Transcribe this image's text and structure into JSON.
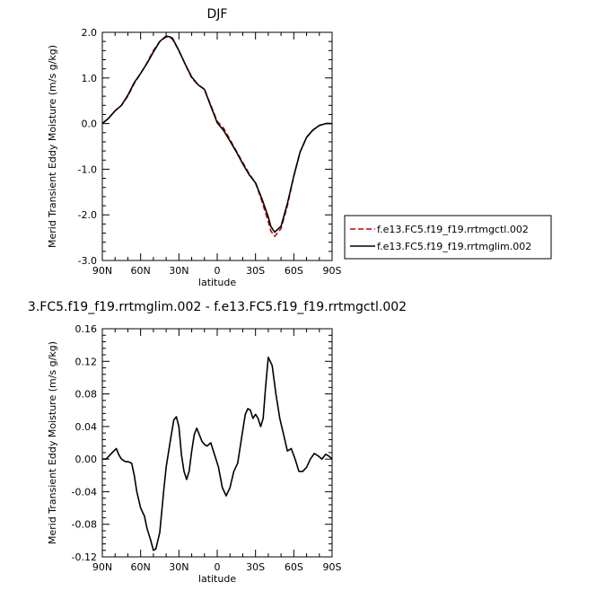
{
  "chart_data": [
    {
      "type": "line",
      "title": "DJF",
      "xlabel": "latitude",
      "ylabel": "Merid Transient Eddy Moisture (m/s g/kg)",
      "xlim": [
        90,
        -90
      ],
      "ylim": [
        -3.0,
        2.0
      ],
      "xticks": [
        90,
        60,
        30,
        0,
        -30,
        -60,
        -90
      ],
      "xtick_labels": [
        "90N",
        "60N",
        "30N",
        "0",
        "30S",
        "60S",
        "90S"
      ],
      "yticks": [
        2.0,
        1.0,
        0.0,
        -1.0,
        -2.0,
        -3.0
      ],
      "ytick_labels": [
        "2.0",
        "1.0",
        "0.0",
        "-1.0",
        "-2.0",
        "-3.0"
      ],
      "grid": false,
      "legend_position": "outside-right",
      "series": [
        {
          "name": "f.e13.FC5.f19_f19.rrtmgctl.002",
          "color": "#cc0000",
          "dash": "dashed",
          "x": [
            90,
            85,
            80,
            75,
            70,
            65,
            60,
            55,
            50,
            45,
            40,
            37,
            35,
            30,
            25,
            20,
            15,
            10,
            5,
            0,
            -5,
            -10,
            -15,
            -20,
            -25,
            -30,
            -35,
            -40,
            -42,
            -45,
            -50,
            -55,
            -60,
            -65,
            -70,
            -75,
            -80,
            -85,
            -90
          ],
          "y": [
            0.0,
            0.12,
            0.28,
            0.4,
            0.6,
            0.88,
            1.1,
            1.33,
            1.6,
            1.8,
            1.9,
            1.88,
            1.85,
            1.6,
            1.3,
            1.0,
            0.85,
            0.75,
            0.4,
            0.05,
            -0.1,
            -0.35,
            -0.6,
            -0.85,
            -1.1,
            -1.3,
            -1.7,
            -2.15,
            -2.35,
            -2.47,
            -2.3,
            -1.8,
            -1.15,
            -0.62,
            -0.3,
            -0.14,
            -0.04,
            0.0,
            0.0
          ]
        },
        {
          "name": "f.e13.FC5.f19_f19.rrtmglim.002",
          "color": "#000000",
          "dash": "solid",
          "x": [
            90,
            85,
            80,
            75,
            70,
            65,
            60,
            55,
            50,
            45,
            40,
            37,
            35,
            30,
            25,
            20,
            15,
            10,
            5,
            0,
            -5,
            -10,
            -15,
            -20,
            -25,
            -30,
            -35,
            -40,
            -42,
            -45,
            -50,
            -55,
            -60,
            -65,
            -70,
            -75,
            -80,
            -85,
            -90
          ],
          "y": [
            0.0,
            0.12,
            0.28,
            0.4,
            0.62,
            0.9,
            1.1,
            1.32,
            1.57,
            1.8,
            1.92,
            1.9,
            1.87,
            1.6,
            1.3,
            1.02,
            0.85,
            0.75,
            0.38,
            0.02,
            -0.15,
            -0.38,
            -0.62,
            -0.88,
            -1.12,
            -1.3,
            -1.65,
            -2.05,
            -2.25,
            -2.38,
            -2.25,
            -1.75,
            -1.15,
            -0.62,
            -0.3,
            -0.14,
            -0.04,
            0.0,
            0.0
          ]
        }
      ]
    },
    {
      "type": "line",
      "title": "3.FC5.f19_f19.rrtmglim.002 - f.e13.FC5.f19_f19.rrtmgctl.002",
      "xlabel": "latitude",
      "ylabel": "Merid Transient Eddy Moisture (m/s g/kg)",
      "xlim": [
        90,
        -90
      ],
      "ylim": [
        -0.12,
        0.16
      ],
      "xticks": [
        90,
        60,
        30,
        0,
        -30,
        -60,
        -90
      ],
      "xtick_labels": [
        "90N",
        "60N",
        "30N",
        "0",
        "30S",
        "60S",
        "90S"
      ],
      "yticks": [
        0.16,
        0.12,
        0.08,
        0.04,
        0.0,
        -0.04,
        -0.08,
        -0.12
      ],
      "ytick_labels": [
        "0.16",
        "0.12",
        "0.08",
        "0.04",
        "0.00",
        "-0.04",
        "-0.08",
        "-0.12"
      ],
      "grid": false,
      "series": [
        {
          "color": "#000000",
          "dash": "solid",
          "x": [
            90,
            87,
            84,
            81,
            79,
            77,
            75,
            72,
            70,
            67,
            65,
            63,
            60,
            57,
            55,
            52,
            50,
            48,
            45,
            42,
            40,
            37,
            34,
            32,
            30,
            28,
            26,
            24,
            22,
            20,
            18,
            16,
            14,
            12,
            10,
            8,
            5,
            3,
            1,
            -1,
            -4,
            -7,
            -10,
            -13,
            -16,
            -18,
            -20,
            -22,
            -24,
            -26,
            -28,
            -30,
            -32,
            -34,
            -36,
            -38,
            -40,
            -43,
            -46,
            -49,
            -52,
            -55,
            -58,
            -61,
            -64,
            -67,
            -70,
            -73,
            -76,
            -79,
            -82,
            -85,
            -88,
            -90
          ],
          "y": [
            0.0,
            0.0,
            0.005,
            0.01,
            0.013,
            0.005,
            0.0,
            -0.003,
            -0.003,
            -0.005,
            -0.02,
            -0.04,
            -0.06,
            -0.07,
            -0.085,
            -0.1,
            -0.112,
            -0.11,
            -0.09,
            -0.04,
            -0.01,
            0.02,
            0.048,
            0.052,
            0.04,
            0.005,
            -0.015,
            -0.025,
            -0.015,
            0.01,
            0.03,
            0.038,
            0.03,
            0.022,
            0.018,
            0.016,
            0.02,
            0.01,
            0.0,
            -0.01,
            -0.035,
            -0.045,
            -0.035,
            -0.015,
            -0.005,
            0.015,
            0.035,
            0.055,
            0.062,
            0.06,
            0.05,
            0.055,
            0.05,
            0.04,
            0.05,
            0.09,
            0.125,
            0.115,
            0.08,
            0.05,
            0.03,
            0.01,
            0.013,
            0.0,
            -0.015,
            -0.015,
            -0.01,
            0.0,
            0.007,
            0.004,
            0.0,
            0.006,
            0.003,
            0.0
          ]
        }
      ]
    }
  ]
}
